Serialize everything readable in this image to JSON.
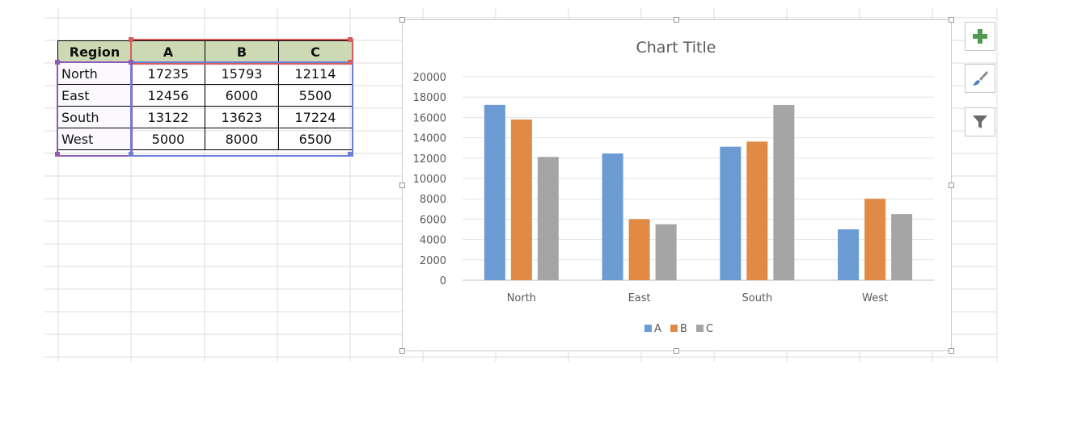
{
  "table": {
    "headers": [
      "Region",
      "A",
      "B",
      "C"
    ],
    "rows": [
      {
        "region": "North",
        "a": "17235",
        "b": "15793",
        "c": "12114"
      },
      {
        "region": "East",
        "a": "12456",
        "b": "6000",
        "c": "5500"
      },
      {
        "region": "South",
        "a": "13122",
        "b": "13623",
        "c": "17224"
      },
      {
        "region": "West",
        "a": "5000",
        "b": "8000",
        "c": "6500"
      }
    ]
  },
  "chart_data": {
    "type": "bar",
    "title": "Chart Title",
    "categories": [
      "North",
      "East",
      "South",
      "West"
    ],
    "series": [
      {
        "name": "A",
        "values": [
          17235,
          12456,
          13122,
          5000
        ],
        "color": "#6b9bd2"
      },
      {
        "name": "B",
        "values": [
          15793,
          6000,
          13623,
          8000
        ],
        "color": "#e08a46"
      },
      {
        "name": "C",
        "values": [
          12114,
          5500,
          17224,
          6500
        ],
        "color": "#a5a5a5"
      }
    ],
    "ylim": [
      0,
      20000
    ],
    "yticks": [
      "0",
      "2000",
      "4000",
      "6000",
      "8000",
      "10000",
      "12000",
      "14000",
      "16000",
      "18000",
      "20000"
    ],
    "grid": true,
    "legend": "bottom"
  },
  "chart_tools": {
    "elements_icon": "plus-icon",
    "styles_icon": "brush-icon",
    "filters_icon": "filter-icon",
    "accent": "#4f9a4f"
  }
}
